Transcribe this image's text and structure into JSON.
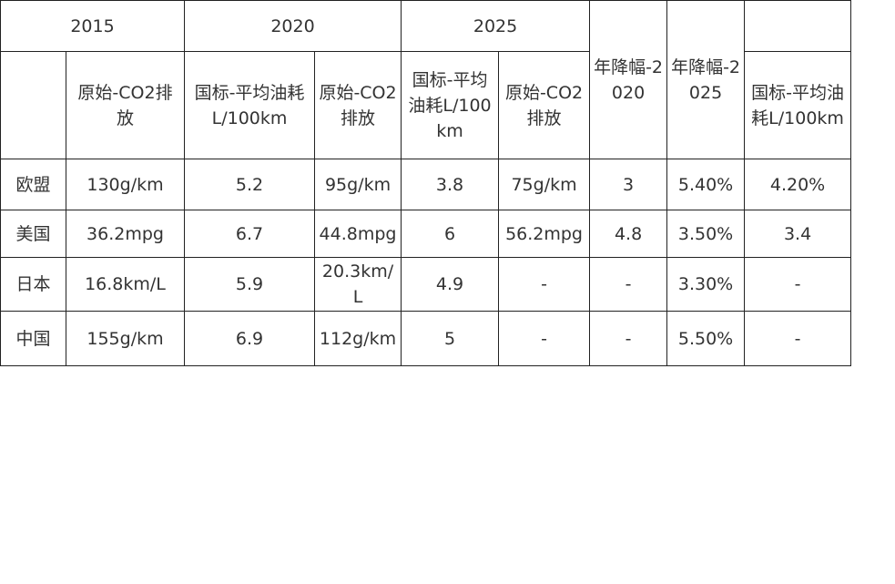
{
  "table": {
    "header": [
      [
        "2015",
        "2020",
        "2025",
        "年降幅-2020",
        "年降幅-2025"
      ],
      [
        "原始-CO2排放",
        "国标-平均油耗L/100km",
        "原始-CO2排放",
        "国标-平均油耗L/100km",
        "原始-CO2排放",
        "国标-平均油耗L/100km"
      ]
    ],
    "rows": [
      [
        "欧盟",
        "130g/km",
        "5.2",
        "95g/km",
        "3.8",
        "75g/km",
        "3",
        "5.40%",
        "4.20%"
      ],
      [
        "美国",
        "36.2mpg",
        "6.7",
        "44.8mpg",
        "6",
        "56.2mpg",
        "4.8",
        "3.50%",
        "3.4"
      ],
      [
        "日本",
        "16.8km/L",
        "5.9",
        "20.3km/L",
        "4.9",
        "-",
        "-",
        "3.30%",
        "-"
      ],
      [
        "中国",
        "155g/km",
        "6.9",
        "112g/km",
        "5",
        "-",
        "-",
        "5.50%",
        "-"
      ]
    ]
  }
}
